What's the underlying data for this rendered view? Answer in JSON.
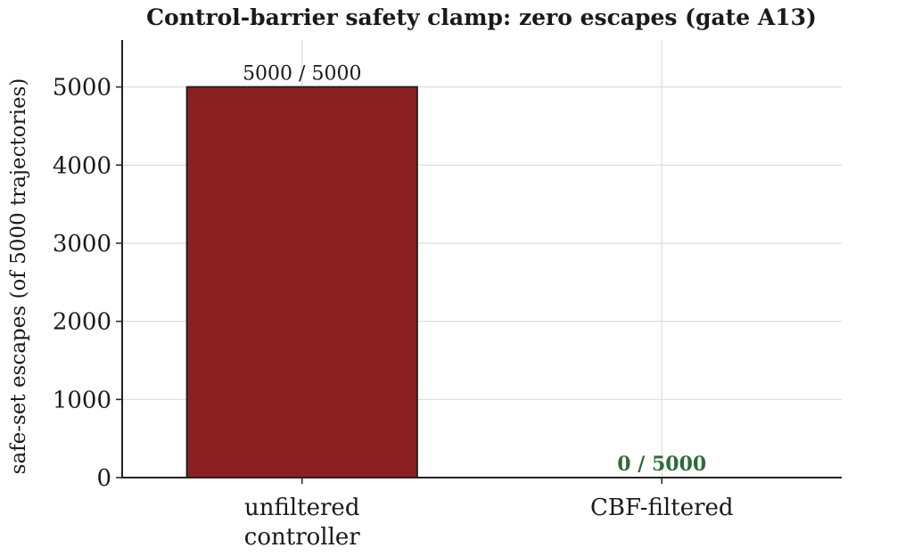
{
  "chart_data": {
    "type": "bar",
    "title": "Control-barrier safety clamp: zero escapes (gate A13)",
    "xlabel": "",
    "ylabel": "safe-set escapes (of 5000 trajectories)",
    "categories": [
      [
        "unfiltered",
        "controller"
      ],
      [
        "CBF-filtered"
      ]
    ],
    "values": [
      5000,
      0
    ],
    "bar_labels": [
      "5000 / 5000",
      "0 / 5000"
    ],
    "bar_colors": [
      "#8b2022",
      "#ffffff"
    ],
    "label_colors": [
      "#1a1a1a",
      "#2e6b3a"
    ],
    "label_bold": [
      false,
      true
    ],
    "yticks": [
      0,
      1000,
      2000,
      3000,
      4000,
      5000
    ],
    "ylim": [
      0,
      5600
    ],
    "grid": true,
    "legend": "none"
  }
}
